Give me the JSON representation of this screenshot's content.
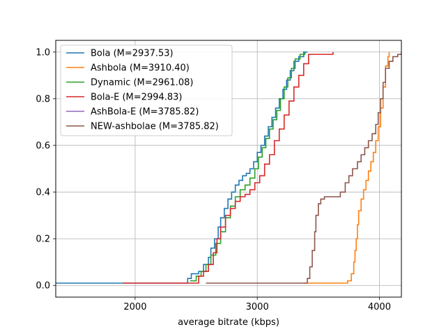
{
  "chart_data": {
    "type": "line",
    "title": "",
    "xlabel": "average bitrate (kbps)",
    "ylabel": "",
    "xlim": [
      1350,
      4180
    ],
    "ylim": [
      -0.05,
      1.05
    ],
    "xticks": [
      2000,
      3000,
      4000
    ],
    "yticks": [
      0.0,
      0.2,
      0.4,
      0.6,
      0.8,
      1.0
    ],
    "xtick_labels": [
      "2000",
      "3000",
      "4000"
    ],
    "ytick_labels": [
      "0.0",
      "0.2",
      "0.4",
      "0.6",
      "0.8",
      "1.0"
    ],
    "grid": true,
    "legend_position": "top-left",
    "series": [
      {
        "name": "Bola (M=2937.53)",
        "color": "#1f77b4",
        "x": [
          1350,
          2400,
          2430,
          2460,
          2520,
          2560,
          2600,
          2620,
          2650,
          2680,
          2700,
          2730,
          2760,
          2790,
          2820,
          2850,
          2880,
          2910,
          2940,
          2970,
          3000,
          3030,
          3060,
          3090,
          3120,
          3150,
          3180,
          3210,
          3240,
          3270,
          3300,
          3340,
          3380,
          3410
        ],
        "y": [
          0.01,
          0.01,
          0.03,
          0.05,
          0.06,
          0.09,
          0.12,
          0.16,
          0.2,
          0.25,
          0.29,
          0.33,
          0.37,
          0.4,
          0.43,
          0.45,
          0.47,
          0.48,
          0.5,
          0.53,
          0.57,
          0.6,
          0.64,
          0.68,
          0.72,
          0.76,
          0.8,
          0.84,
          0.88,
          0.92,
          0.96,
          0.98,
          1.0,
          1.0
        ]
      },
      {
        "name": "Ashbola (M=3910.40)",
        "color": "#ff7f0e",
        "x": [
          3380,
          3700,
          3740,
          3770,
          3790,
          3800,
          3810,
          3820,
          3830,
          3850,
          3870,
          3890,
          3910,
          3930,
          3950,
          3970,
          3990,
          4010,
          4030,
          4050,
          4070,
          4080
        ],
        "y": [
          0.01,
          0.01,
          0.02,
          0.05,
          0.1,
          0.15,
          0.2,
          0.26,
          0.32,
          0.37,
          0.41,
          0.45,
          0.49,
          0.53,
          0.57,
          0.62,
          0.68,
          0.76,
          0.85,
          0.94,
          0.98,
          1.0
        ]
      },
      {
        "name": "Dynamic (M=2961.08)",
        "color": "#2ca02c",
        "x": [
          2450,
          2500,
          2540,
          2580,
          2620,
          2660,
          2700,
          2740,
          2780,
          2820,
          2860,
          2900,
          2940,
          2980,
          3010,
          3040,
          3070,
          3100,
          3130,
          3160,
          3190,
          3220,
          3250,
          3280,
          3310,
          3350,
          3390
        ],
        "y": [
          0.02,
          0.04,
          0.06,
          0.09,
          0.13,
          0.18,
          0.23,
          0.29,
          0.34,
          0.38,
          0.41,
          0.43,
          0.46,
          0.5,
          0.55,
          0.59,
          0.63,
          0.67,
          0.71,
          0.75,
          0.8,
          0.85,
          0.89,
          0.93,
          0.97,
          0.99,
          1.0
        ]
      },
      {
        "name": "Bola-E (M=2994.83)",
        "color": "#d62728",
        "x": [
          1900,
          2480,
          2520,
          2560,
          2600,
          2640,
          2670,
          2700,
          2740,
          2780,
          2820,
          2860,
          2900,
          2940,
          2980,
          3020,
          3060,
          3100,
          3140,
          3180,
          3220,
          3260,
          3300,
          3340,
          3380,
          3420,
          3460,
          3540,
          3620
        ],
        "y": [
          0.01,
          0.01,
          0.04,
          0.06,
          0.09,
          0.14,
          0.2,
          0.25,
          0.3,
          0.33,
          0.36,
          0.38,
          0.39,
          0.41,
          0.44,
          0.47,
          0.52,
          0.56,
          0.62,
          0.67,
          0.73,
          0.79,
          0.85,
          0.9,
          0.95,
          0.99,
          0.99,
          0.99,
          1.0
        ]
      },
      {
        "name": "AshBola-E (M=3785.82)",
        "color": "#9467bd",
        "x": [],
        "y": []
      },
      {
        "name": "NEW-ashbolae (M=3785.82)",
        "color": "#8c564b",
        "x": [
          2580,
          3370,
          3410,
          3430,
          3450,
          3470,
          3480,
          3500,
          3520,
          3550,
          3600,
          3680,
          3720,
          3750,
          3780,
          3820,
          3850,
          3880,
          3910,
          3940,
          3970,
          3990,
          4010,
          4030,
          4050,
          4080,
          4110,
          4150,
          4180
        ],
        "y": [
          0.01,
          0.01,
          0.03,
          0.08,
          0.15,
          0.23,
          0.3,
          0.35,
          0.37,
          0.38,
          0.38,
          0.4,
          0.44,
          0.47,
          0.5,
          0.53,
          0.56,
          0.59,
          0.62,
          0.65,
          0.69,
          0.74,
          0.8,
          0.87,
          0.93,
          0.96,
          0.98,
          0.99,
          1.0
        ]
      }
    ]
  }
}
